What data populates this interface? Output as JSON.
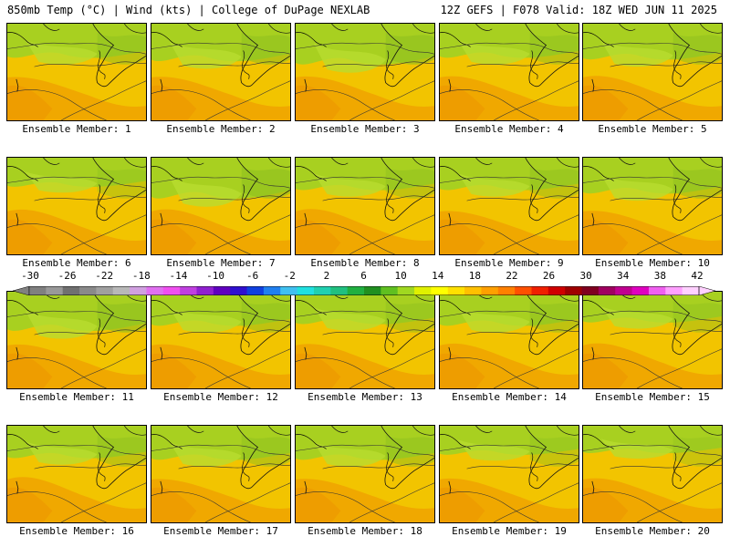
{
  "header": {
    "left": "850mb Temp (°C) | Wind (kts) | College of DuPage NEXLAB",
    "right": "12Z GEFS | F078 Valid: 18Z WED JUN 11 2025"
  },
  "panels": [
    {
      "label": "Ensemble Member: 1",
      "green": 0.35
    },
    {
      "label": "Ensemble Member: 2",
      "green": 0.45
    },
    {
      "label": "Ensemble Member: 3",
      "green": 0.55
    },
    {
      "label": "Ensemble Member: 4",
      "green": 0.35
    },
    {
      "label": "Ensemble Member: 5",
      "green": 0.4
    },
    {
      "label": "Ensemble Member: 6",
      "green": 0.2
    },
    {
      "label": "Ensemble Member: 7",
      "green": 0.55
    },
    {
      "label": "Ensemble Member: 8",
      "green": 0.3
    },
    {
      "label": "Ensemble Member: 9",
      "green": 0.3
    },
    {
      "label": "Ensemble Member: 10",
      "green": 0.4
    },
    {
      "label": "Ensemble Member: 11",
      "green": 0.5
    },
    {
      "label": "Ensemble Member: 12",
      "green": 0.35
    },
    {
      "label": "Ensemble Member: 13",
      "green": 0.3
    },
    {
      "label": "Ensemble Member: 14",
      "green": 0.35
    },
    {
      "label": "Ensemble Member: 15",
      "green": 0.25
    },
    {
      "label": "Ensemble Member: 16",
      "green": 0.3
    },
    {
      "label": "Ensemble Member: 17",
      "green": 0.35
    },
    {
      "label": "Ensemble Member: 18",
      "green": 0.35
    },
    {
      "label": "Ensemble Member: 19",
      "green": 0.2
    },
    {
      "label": "Ensemble Member: 20",
      "green": 0.15
    }
  ],
  "colorbar": {
    "ticks": [
      "-30",
      "-26",
      "-22",
      "-18",
      "-14",
      "-10",
      "-6",
      "-2",
      "2",
      "6",
      "10",
      "14",
      "18",
      "22",
      "26",
      "30",
      "34",
      "38",
      "42"
    ],
    "colors": [
      "#808080",
      "#999999",
      "#707070",
      "#8a8a8a",
      "#a0a0a0",
      "#b8b8b8",
      "#d0a0e0",
      "#e070f0",
      "#f050f0",
      "#c040e0",
      "#9020d0",
      "#6000c0",
      "#3010d0",
      "#1040e0",
      "#2080f0",
      "#40c0f0",
      "#20e0e0",
      "#20d0b0",
      "#20c080",
      "#20b040",
      "#209020",
      "#60c020",
      "#a0d820",
      "#e0f000",
      "#ffff00",
      "#ffe000",
      "#ffc000",
      "#ffa000",
      "#ff8000",
      "#ff5000",
      "#f02000",
      "#d00000",
      "#a00000",
      "#800020",
      "#a00060",
      "#c00090",
      "#e000c0",
      "#f060f0",
      "#ffa0ff",
      "#ffd0ff"
    ]
  }
}
